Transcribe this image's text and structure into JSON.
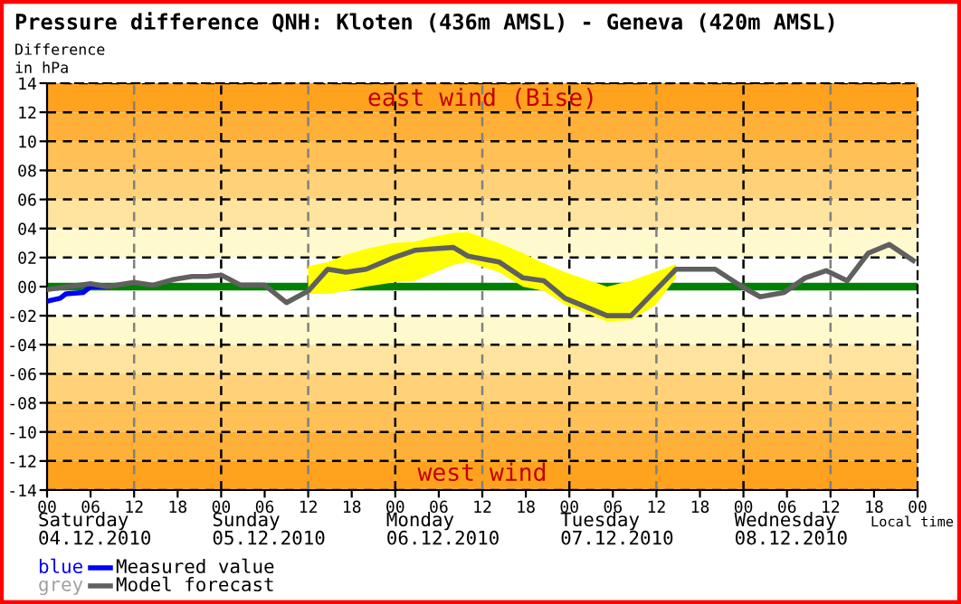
{
  "chart_data": {
    "type": "line",
    "title": "Pressure difference QNH: Kloten (436m AMSL) - Geneva (420m AMSL)",
    "ylabel": "Difference\nin hPa",
    "xlabel": "Local time",
    "series": [
      {
        "name": "Measured value",
        "color": "#0000ff",
        "x": [
          0,
          1.8,
          2.6,
          5,
          6,
          8.3
        ],
        "values": [
          -1.0,
          -0.8,
          -0.5,
          -0.4,
          0,
          0
        ]
      },
      {
        "name": "Model forecast",
        "color": "#606060",
        "x": [
          0,
          6,
          8.3,
          12,
          14.6,
          17.5,
          20,
          22,
          24,
          26.7,
          30,
          33,
          36,
          38.7,
          41.2,
          44,
          47.8,
          50.7,
          53.1,
          56,
          58,
          62.3,
          65.6,
          68.5,
          71.4,
          77.2,
          80.5,
          83.8,
          86.7,
          89.6,
          92.1,
          95.8,
          98.3,
          101.6,
          104.5,
          107.4,
          110.3,
          113.2,
          116.1,
          119.4
        ],
        "values": [
          -0.2,
          0.2,
          0,
          0.3,
          0.1,
          0.5,
          0.7,
          0.7,
          0.8,
          0.1,
          0.1,
          -1.1,
          -0.3,
          1.2,
          1.0,
          1.2,
          2.0,
          2.5,
          2.6,
          2.7,
          2.1,
          1.7,
          0.6,
          0.4,
          -0.8,
          -2.0,
          -2.0,
          -0.3,
          1.2,
          1.2,
          1.2,
          0,
          -0.7,
          -0.4,
          0.6,
          1.1,
          0.4,
          2.3,
          2.9,
          1.8
        ],
        "lower": [
          null,
          null,
          null,
          null,
          null,
          null,
          null,
          null,
          null,
          null,
          null,
          null,
          -0.5,
          -0.5,
          -0.3,
          0,
          0.3,
          0.4,
          0.9,
          1.5,
          1.7,
          1.0,
          0,
          -0.3,
          -1.25,
          -2.4,
          -2.3,
          -1.3,
          0.6,
          null,
          null,
          null,
          null,
          null,
          null,
          null,
          null,
          null,
          null,
          null
        ],
        "upper": [
          null,
          null,
          null,
          null,
          null,
          null,
          null,
          null,
          null,
          null,
          null,
          null,
          1.4,
          1.7,
          2.2,
          2.6,
          3.0,
          3.1,
          3.4,
          3.7,
          3.75,
          3.0,
          2.3,
          1.6,
          1.0,
          0,
          0.4,
          1.0,
          1.55,
          null,
          null,
          null,
          null,
          null,
          null,
          null,
          null,
          null,
          null,
          null
        ]
      }
    ],
    "xlim": [
      0,
      120
    ],
    "xticks": [
      {
        "value": 0,
        "label": "00"
      },
      {
        "value": 6,
        "label": "06"
      },
      {
        "value": 12,
        "label": "12"
      },
      {
        "value": 18,
        "label": "18"
      },
      {
        "value": 24,
        "label": "00"
      },
      {
        "value": 30,
        "label": "06"
      },
      {
        "value": 36,
        "label": "12"
      },
      {
        "value": 42,
        "label": "18"
      },
      {
        "value": 48,
        "label": "00"
      },
      {
        "value": 54,
        "label": "06"
      },
      {
        "value": 60,
        "label": "12"
      },
      {
        "value": 66,
        "label": "18"
      },
      {
        "value": 72,
        "label": "00"
      },
      {
        "value": 78,
        "label": "06"
      },
      {
        "value": 84,
        "label": "12"
      },
      {
        "value": 90,
        "label": "18"
      },
      {
        "value": 96,
        "label": "00"
      },
      {
        "value": 102,
        "label": "06"
      },
      {
        "value": 108,
        "label": "12"
      },
      {
        "value": 114,
        "label": "18"
      },
      {
        "value": 120,
        "label": "00"
      }
    ],
    "ylim": [
      -14,
      14
    ],
    "yticks": [
      14,
      12,
      {
        "value": 10,
        "label": "10"
      },
      {
        "value": 8,
        "label": "08"
      },
      {
        "value": 6,
        "label": "06"
      },
      {
        "value": 4,
        "label": "04"
      },
      {
        "value": 2,
        "label": "02"
      },
      {
        "value": 0,
        "label": "00"
      },
      {
        "value": -2,
        "label": "-02"
      },
      {
        "value": -4,
        "label": "-04"
      },
      {
        "value": -6,
        "label": "-06"
      },
      {
        "value": -8,
        "label": "-08"
      },
      -10,
      -12,
      -14
    ],
    "grid": "y",
    "line_style": "solid",
    "marker": "none",
    "legend": "bottom",
    "bands": [
      {
        "axis": "y",
        "from": 12,
        "to": 14,
        "color": "#ffa31e"
      },
      {
        "axis": "y",
        "from": 10,
        "to": 12,
        "color": "#ffb038"
      },
      {
        "axis": "y",
        "from": 8,
        "to": 10,
        "color": "#ffc055"
      },
      {
        "axis": "y",
        "from": 6,
        "to": 8,
        "color": "#ffd27a"
      },
      {
        "axis": "y",
        "from": 4,
        "to": 6,
        "color": "#ffe4a0"
      },
      {
        "axis": "y",
        "from": 2,
        "to": 4,
        "color": "#fffacd"
      },
      {
        "axis": "y",
        "from": -4,
        "to": -2,
        "color": "#fffacd"
      },
      {
        "axis": "y",
        "from": -6,
        "to": -4,
        "color": "#ffe4a0"
      },
      {
        "axis": "y",
        "from": -8,
        "to": -6,
        "color": "#ffd27a"
      },
      {
        "axis": "y",
        "from": -10,
        "to": -8,
        "color": "#ffc055"
      },
      {
        "axis": "y",
        "from": -12,
        "to": -10,
        "color": "#ffb038"
      },
      {
        "axis": "y",
        "from": -14,
        "to": -12,
        "color": "#ffa31e"
      }
    ],
    "ref_lines": [
      {
        "axis": "y",
        "value": 0,
        "color": "#008000",
        "line_style": "solid"
      },
      {
        "axis": "x",
        "value": 12,
        "color": "#808080",
        "line_style": "dashed"
      },
      {
        "axis": "x",
        "value": 24,
        "color": "#000000",
        "line_style": "dashed"
      },
      {
        "axis": "x",
        "value": 36,
        "color": "#808080",
        "line_style": "dashed"
      },
      {
        "axis": "x",
        "value": 48,
        "color": "#000000",
        "line_style": "dashed"
      },
      {
        "axis": "x",
        "value": 60,
        "color": "#808080",
        "line_style": "dashed"
      },
      {
        "axis": "x",
        "value": 72,
        "color": "#000000",
        "line_style": "dashed"
      },
      {
        "axis": "x",
        "value": 84,
        "color": "#808080",
        "line_style": "dashed"
      },
      {
        "axis": "x",
        "value": 96,
        "color": "#000000",
        "line_style": "dashed"
      },
      {
        "axis": "x",
        "value": 108,
        "color": "#808080",
        "line_style": "dashed"
      }
    ],
    "annotations": [
      "east wind (Bise)",
      "west wind",
      "Saturday\n04.12.2010",
      "Sunday\n05.12.2010",
      "Monday\n06.12.2010",
      "Tuesday\n07.12.2010",
      "Wednesday\n08.12.2010",
      "blue",
      "grey"
    ]
  }
}
